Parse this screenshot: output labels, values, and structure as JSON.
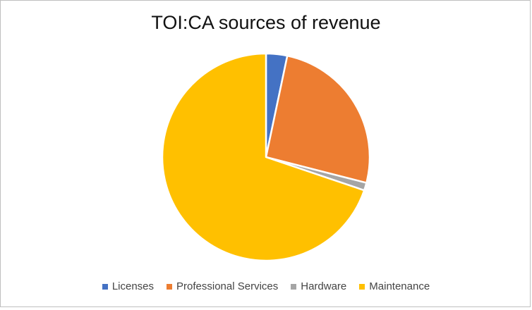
{
  "chart_data": {
    "type": "pie",
    "title": "TOI:CA sources of revenue",
    "categories": [
      "Licenses",
      "Professional Services",
      "Hardware",
      "Maintenance"
    ],
    "values": [
      3.3,
      25.7,
      1.2,
      69.8
    ],
    "colors": [
      "#4472C4",
      "#ED7D31",
      "#A5A5A5",
      "#FFC000"
    ],
    "legend_position": "bottom"
  }
}
